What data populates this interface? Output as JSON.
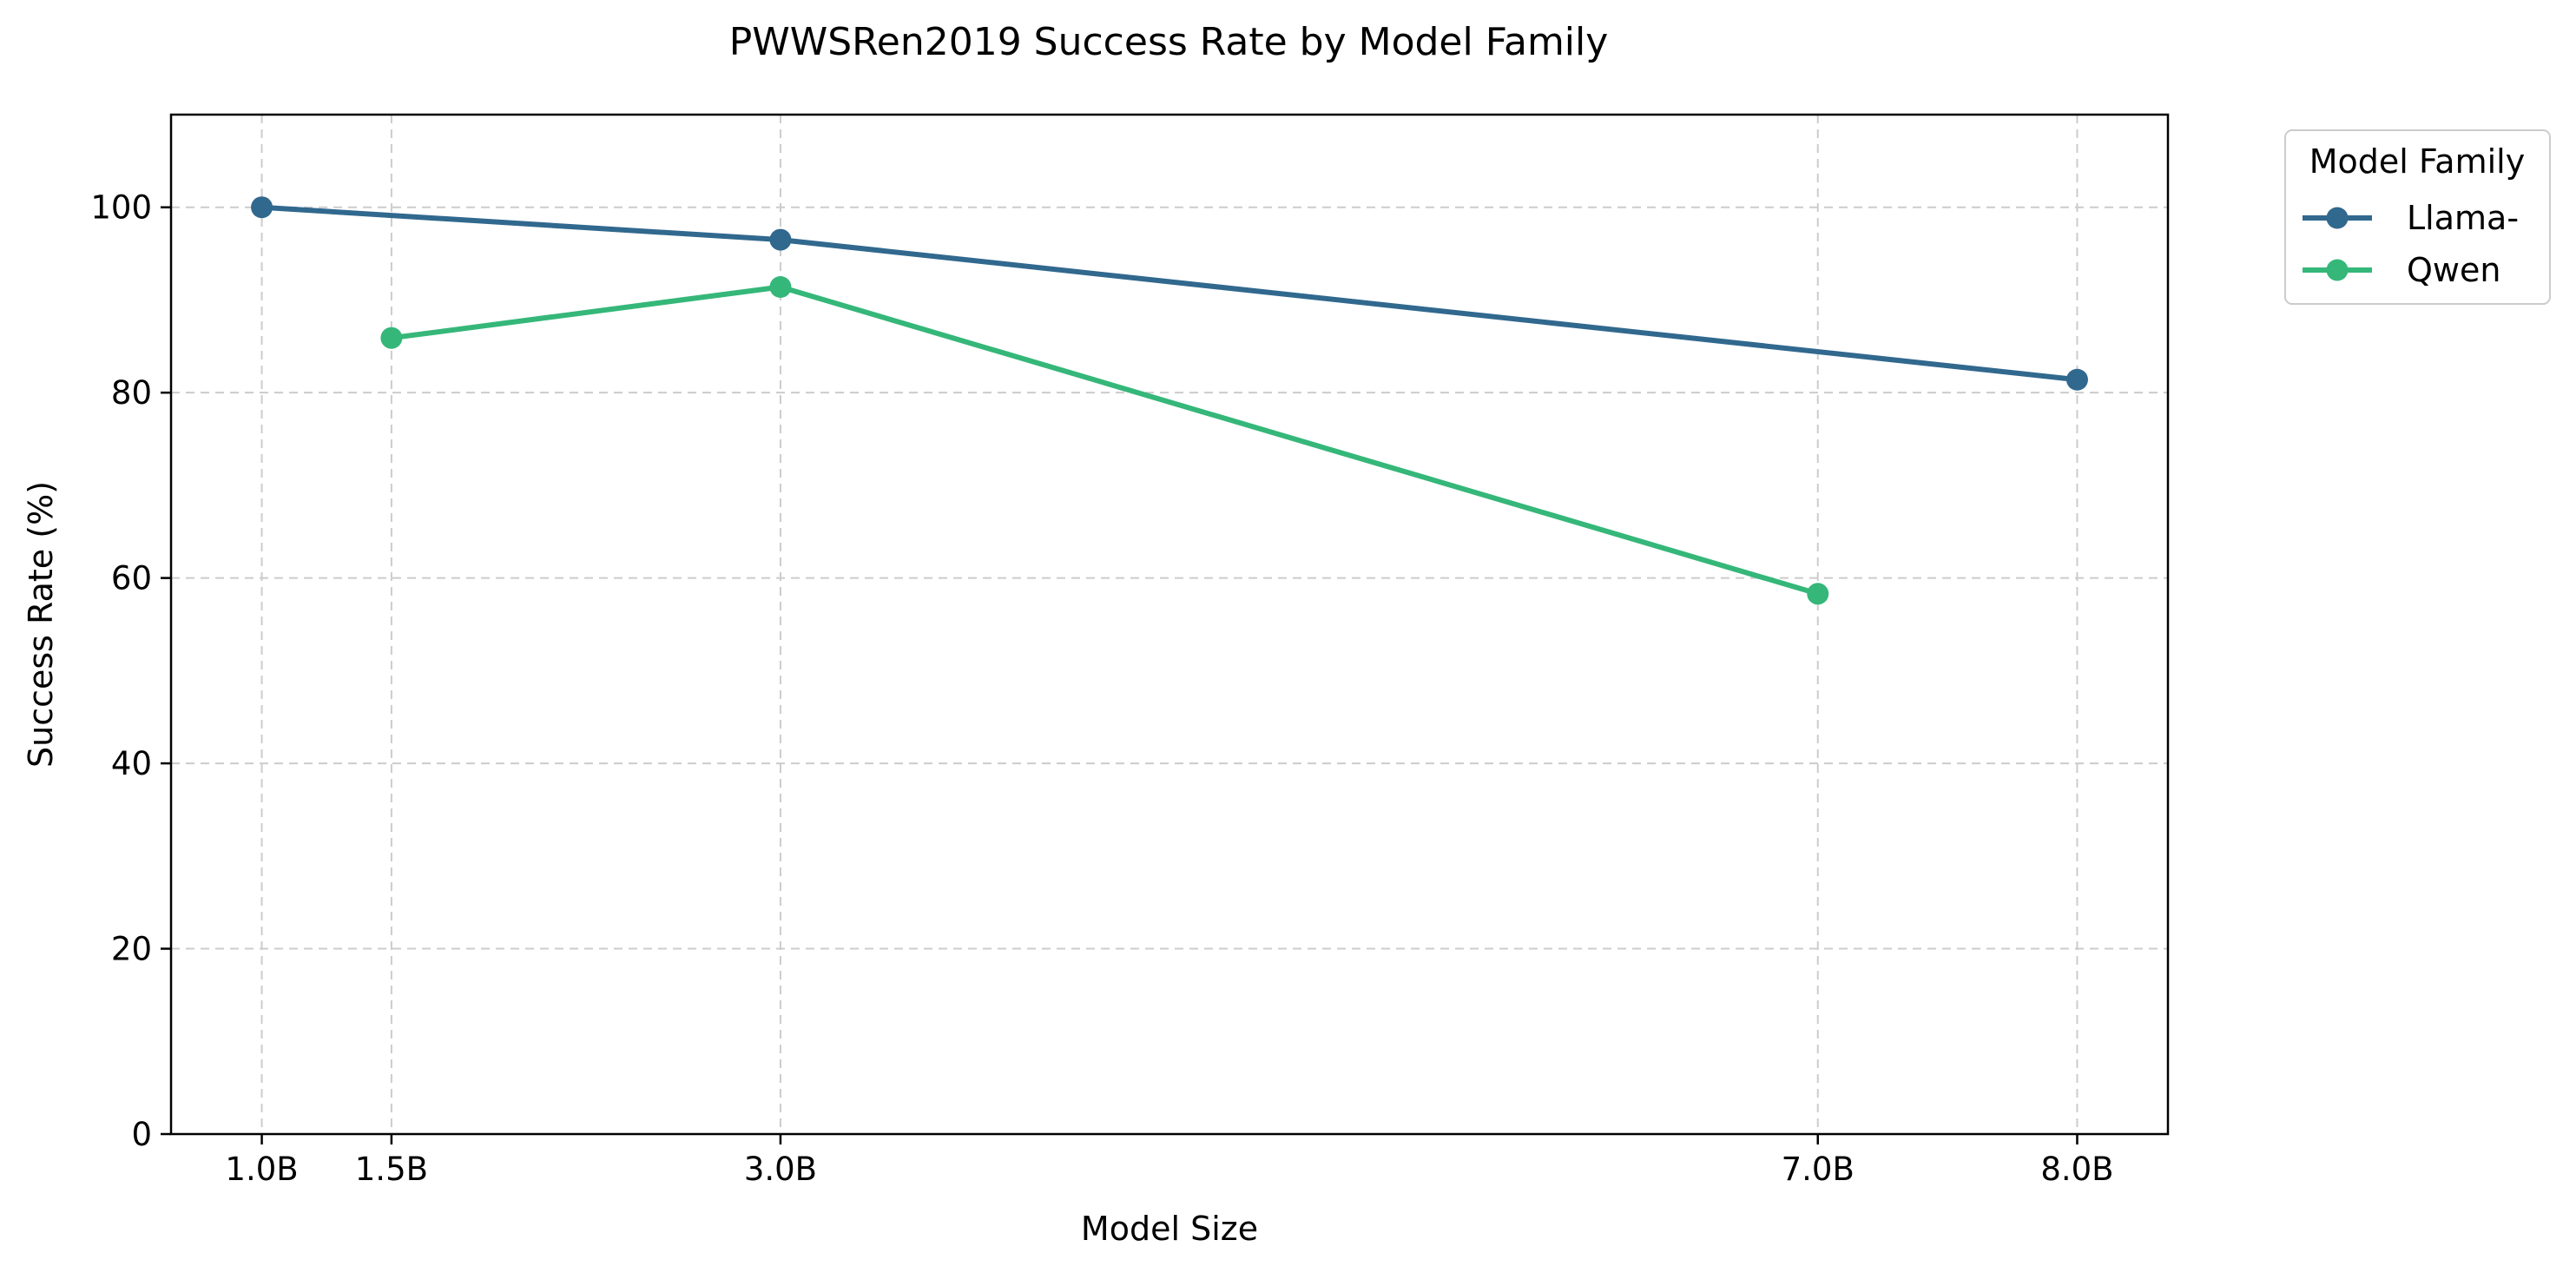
{
  "chart_data": {
    "type": "line",
    "title": "PWWSRen2019 Success Rate by Model Family",
    "xlabel": "Model Size",
    "ylabel": "Success Rate (%)",
    "x_ticks": [
      {
        "value": 1.0,
        "label": "1.0B"
      },
      {
        "value": 1.5,
        "label": "1.5B"
      },
      {
        "value": 3.0,
        "label": "3.0B"
      },
      {
        "value": 7.0,
        "label": "7.0B"
      },
      {
        "value": 8.0,
        "label": "8.0B"
      }
    ],
    "y_ticks": [
      0,
      20,
      40,
      60,
      80,
      100
    ],
    "xlim": [
      0.65,
      8.35
    ],
    "ylim": [
      0,
      110
    ],
    "grid": true,
    "legend": {
      "title": "Model Family",
      "placement": "outside-top-right"
    },
    "series": [
      {
        "name": "Llama-",
        "color": "#31688e",
        "points": [
          {
            "x": 1.0,
            "y": 100.0
          },
          {
            "x": 3.0,
            "y": 96.5
          },
          {
            "x": 8.0,
            "y": 81.4
          }
        ]
      },
      {
        "name": "Qwen",
        "color": "#35b779",
        "points": [
          {
            "x": 1.5,
            "y": 85.9
          },
          {
            "x": 3.0,
            "y": 91.4
          },
          {
            "x": 7.0,
            "y": 58.3
          }
        ]
      }
    ]
  }
}
